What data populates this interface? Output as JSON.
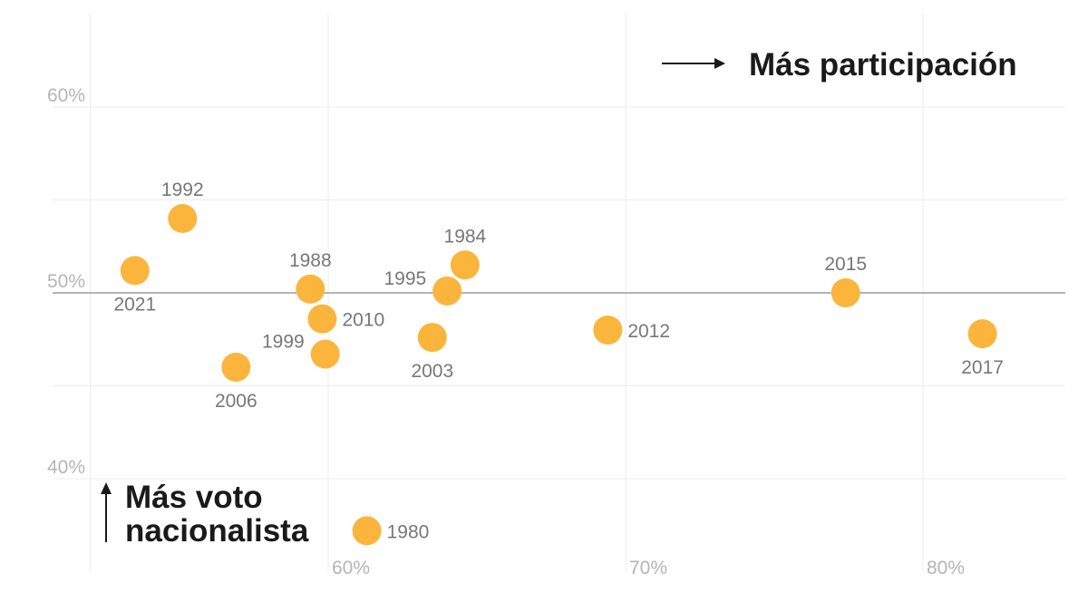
{
  "chart_data": {
    "type": "scatter",
    "title": "",
    "xlabel": "",
    "ylabel": "",
    "xlim": [
      52,
      84.8
    ],
    "ylim": [
      35,
      65
    ],
    "grid": true,
    "x_ticks": [
      {
        "value": 60,
        "label": "60%"
      },
      {
        "value": 70,
        "label": "70%"
      },
      {
        "value": 80,
        "label": "80%"
      }
    ],
    "y_ticks": [
      {
        "value": 60,
        "label": "60%"
      },
      {
        "value": 50,
        "label": "50%"
      },
      {
        "value": 40,
        "label": "40%"
      }
    ],
    "reference_line_y": 50,
    "dot_color": "#fbb53c",
    "annotations": {
      "x_direction": "Más participación",
      "y_direction_line1": "Más voto",
      "y_direction_line2": "nacionalista"
    },
    "points": [
      {
        "label": "1980",
        "x": 61.3,
        "y": 37.2
      },
      {
        "label": "1984",
        "x": 64.6,
        "y": 51.5
      },
      {
        "label": "1988",
        "x": 59.4,
        "y": 50.2
      },
      {
        "label": "1992",
        "x": 55.1,
        "y": 54.0
      },
      {
        "label": "1995",
        "x": 64.0,
        "y": 50.1
      },
      {
        "label": "1999",
        "x": 59.9,
        "y": 46.7
      },
      {
        "label": "2003",
        "x": 63.5,
        "y": 47.6
      },
      {
        "label": "2006",
        "x": 56.9,
        "y": 46.0
      },
      {
        "label": "2010",
        "x": 59.8,
        "y": 48.6
      },
      {
        "label": "2012",
        "x": 69.4,
        "y": 48.0
      },
      {
        "label": "2015",
        "x": 77.4,
        "y": 50.0
      },
      {
        "label": "2017",
        "x": 82.0,
        "y": 47.8
      },
      {
        "label": "2021",
        "x": 53.5,
        "y": 51.2
      }
    ]
  }
}
